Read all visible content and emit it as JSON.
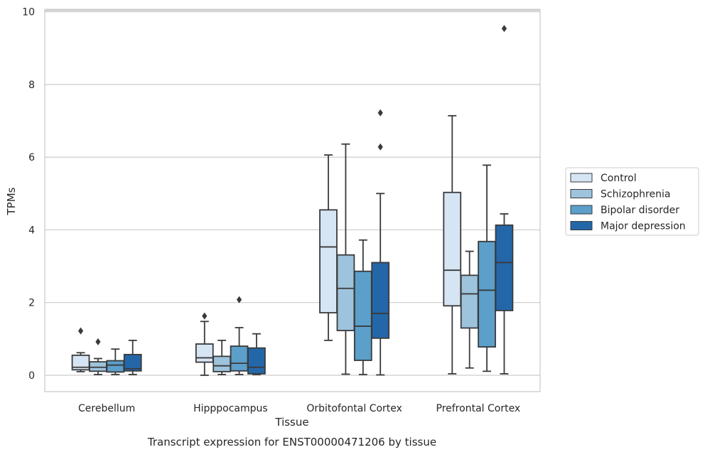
{
  "caption": "Transcript expression for ENST00000471206 by tissue",
  "chart_data": {
    "type": "boxplot",
    "title": "",
    "xlabel": "Tissue",
    "ylabel": "TPMs",
    "ylim": [
      -0.45,
      10.05
    ],
    "yticks": [
      0,
      2,
      4,
      6,
      8,
      10
    ],
    "grid": "horizontal",
    "legend_position": "outside-right",
    "categories": [
      "Cerebellum",
      "Hipppocampus",
      "Orbitofontal Cortex",
      "Prefrontal Cortex"
    ],
    "series": [
      {
        "name": "Control",
        "color": "#d6e5f3",
        "boxes": [
          {
            "whisker_low": 0.1,
            "q1": 0.15,
            "median": 0.22,
            "q3": 0.55,
            "whisker_high": 0.62,
            "outliers": [
              1.22
            ]
          },
          {
            "whisker_low": 0.0,
            "q1": 0.36,
            "median": 0.48,
            "q3": 0.86,
            "whisker_high": 1.48,
            "outliers": [
              1.63
            ]
          },
          {
            "whisker_low": 0.96,
            "q1": 1.72,
            "median": 3.53,
            "q3": 4.55,
            "whisker_high": 6.06,
            "outliers": []
          },
          {
            "whisker_low": 0.04,
            "q1": 1.91,
            "median": 2.89,
            "q3": 5.03,
            "whisker_high": 7.14,
            "outliers": []
          }
        ]
      },
      {
        "name": "Schizophrenia",
        "color": "#9ec3dc",
        "boxes": [
          {
            "whisker_low": 0.02,
            "q1": 0.11,
            "median": 0.22,
            "q3": 0.37,
            "whisker_high": 0.46,
            "outliers": [
              0.92
            ]
          },
          {
            "whisker_low": 0.02,
            "q1": 0.1,
            "median": 0.26,
            "q3": 0.52,
            "whisker_high": 0.96,
            "outliers": []
          },
          {
            "whisker_low": 0.03,
            "q1": 1.23,
            "median": 2.39,
            "q3": 3.31,
            "whisker_high": 6.36,
            "outliers": []
          },
          {
            "whisker_low": 0.2,
            "q1": 1.3,
            "median": 2.24,
            "q3": 2.75,
            "whisker_high": 3.41,
            "outliers": []
          }
        ]
      },
      {
        "name": "Bipolar disorder",
        "color": "#5b9fca",
        "boxes": [
          {
            "whisker_low": 0.02,
            "q1": 0.09,
            "median": 0.28,
            "q3": 0.4,
            "whisker_high": 0.72,
            "outliers": []
          },
          {
            "whisker_low": 0.02,
            "q1": 0.12,
            "median": 0.33,
            "q3": 0.8,
            "whisker_high": 1.31,
            "outliers": [
              2.08
            ]
          },
          {
            "whisker_low": 0.02,
            "q1": 0.41,
            "median": 1.35,
            "q3": 2.86,
            "whisker_high": 3.72,
            "outliers": []
          },
          {
            "whisker_low": 0.11,
            "q1": 0.78,
            "median": 2.34,
            "q3": 3.68,
            "whisker_high": 5.78,
            "outliers": []
          }
        ]
      },
      {
        "name": "Major depression",
        "color": "#2467a9",
        "boxes": [
          {
            "whisker_low": 0.02,
            "q1": 0.12,
            "median": 0.18,
            "q3": 0.57,
            "whisker_high": 0.96,
            "outliers": []
          },
          {
            "whisker_low": 0.02,
            "q1": 0.04,
            "median": 0.22,
            "q3": 0.75,
            "whisker_high": 1.14,
            "outliers": []
          },
          {
            "whisker_low": 0.01,
            "q1": 1.02,
            "median": 1.7,
            "q3": 3.1,
            "whisker_high": 5.0,
            "outliers": [
              6.28,
              7.22
            ]
          },
          {
            "whisker_low": 0.04,
            "q1": 1.78,
            "median": 3.1,
            "q3": 4.13,
            "whisker_high": 4.44,
            "outliers": [
              9.54
            ]
          }
        ]
      }
    ]
  },
  "colors": {
    "grid": "#cccccc",
    "frame": "#cccccc",
    "box_edge": "#3a3a3a",
    "outlier": "#3a3a3a"
  }
}
